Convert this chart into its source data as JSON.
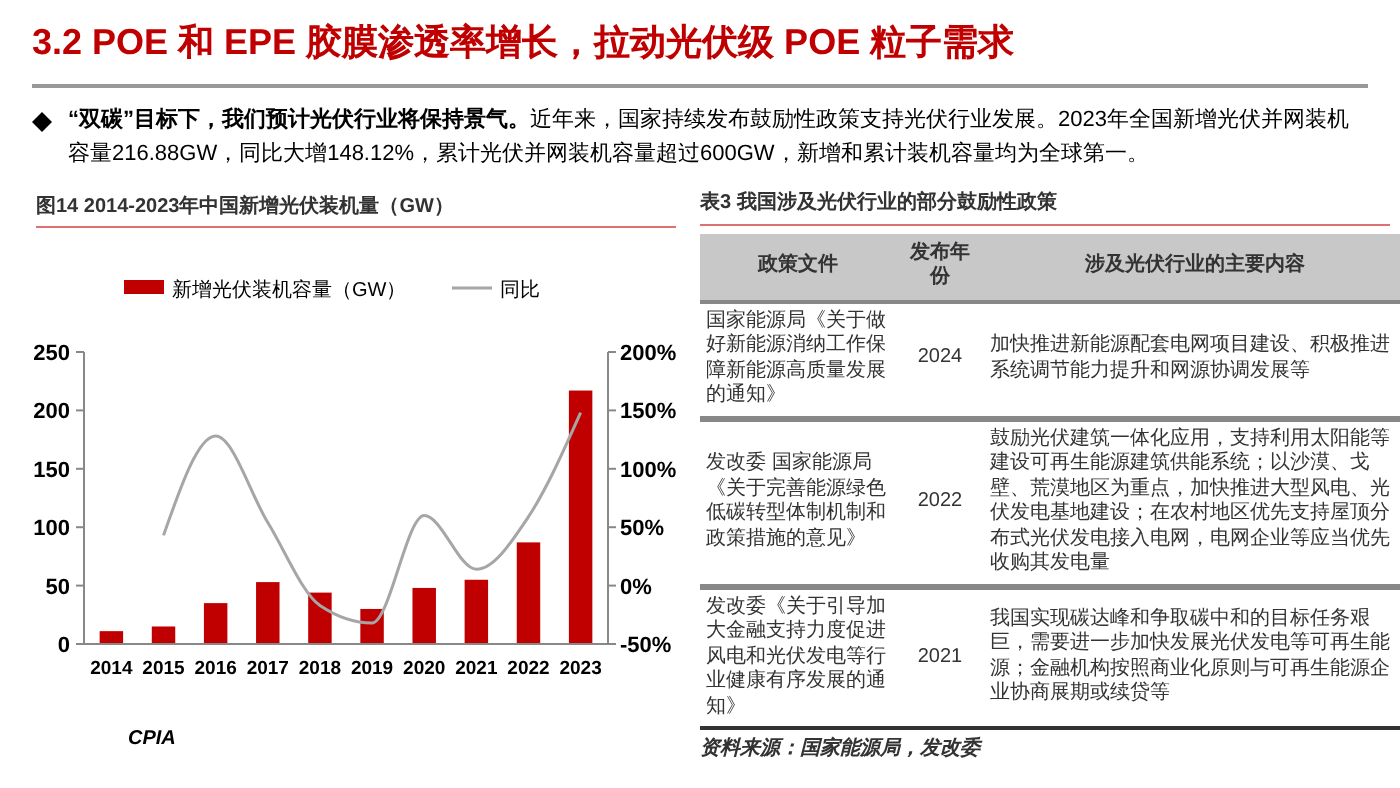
{
  "chart_data": [
    {
      "type": "other",
      "title": "3.2 POE 和 EPE 胶膜渗透率增长，拉动光伏级 POE 粒子需求",
      "annotations": [
        "“双碳”目标下，我们预计光伏行业将保持景气。",
        "近年来，国家持续发布鼓励性政策支持光伏行业发展。2023年全国新增光伏并网装机容量216.88GW，同比大增148.12%，累计光伏并网装机容量超过600GW，新增和累计装机容量均为全球第一。"
      ]
    },
    {
      "type": "bar",
      "title": "图14 2014-2023年中国新增光伏装机量（GW）",
      "categories": [
        "2014",
        "2015",
        "2016",
        "2017",
        "2018",
        "2019",
        "2020",
        "2021",
        "2022",
        "2023"
      ],
      "series": [
        {
          "name": "新增光伏装机容量（GW）",
          "type": "bar",
          "color": "#c00000",
          "values": [
            11,
            15,
            35,
            53,
            44,
            30,
            48,
            55,
            87,
            217
          ]
        },
        {
          "name": "同比",
          "type": "line",
          "axis": "y2",
          "color": "#a6a6a6",
          "values": [
            null,
            43,
            128,
            54,
            -17,
            -32,
            60,
            14,
            59,
            148
          ]
        }
      ],
      "ylim": [
        0,
        250
      ],
      "yticks": [
        0,
        50,
        100,
        150,
        200,
        250
      ],
      "y2lim": [
        -50,
        200
      ],
      "y2ticks": [
        {
          "value": -50,
          "label": "-50%"
        },
        {
          "value": 0,
          "label": "0%"
        },
        {
          "value": 50,
          "label": "50%"
        },
        {
          "value": 100,
          "label": "100%"
        },
        {
          "value": 150,
          "label": "150%"
        },
        {
          "value": 200,
          "label": "200%"
        }
      ],
      "legend": "top",
      "annotations": [
        "CPIA"
      ]
    },
    {
      "type": "other",
      "title": "表3 我国涉及光伏行业的部分鼓励性政策",
      "categories": [
        "政策文件",
        "发布年份",
        "涉及光伏行业的主要内容"
      ],
      "cell_labels": [
        [
          "国家能源局《关于做好新能源消纳工作保障新能源高质量发展的通知》",
          "2024",
          "加快推进新能源配套电网项目建设、积极推进系统调节能力提升和网源协调发展等"
        ],
        [
          "发改委 国家能源局《关于完善能源绿色低碳转型体制机制和政策措施的意见》",
          "2022",
          "鼓励光伏建筑一体化应用，支持利用太阳能等建设可再生能源建筑供能系统；以沙漠、戈壁、荒漠地区为重点，加快推进大型风电、光伏发电基地建设；在农村地区优先支持屋顶分布式光伏发电接入电网，电网企业等应当优先收购其发电量"
        ],
        [
          "发改委《关于引导加大金融支持力度促进风电和光伏发电等行业健康有序发展的通知》",
          "2021",
          "我国实现碳达峰和争取碳中和的目标任务艰巨，需要进一步加快发展光伏发电等可再生能源；金融机构按照商业化原则与可再生能源企业协商展期或续贷等"
        ]
      ],
      "annotations": [
        "资料来源：国家能源局，发改委"
      ]
    }
  ]
}
